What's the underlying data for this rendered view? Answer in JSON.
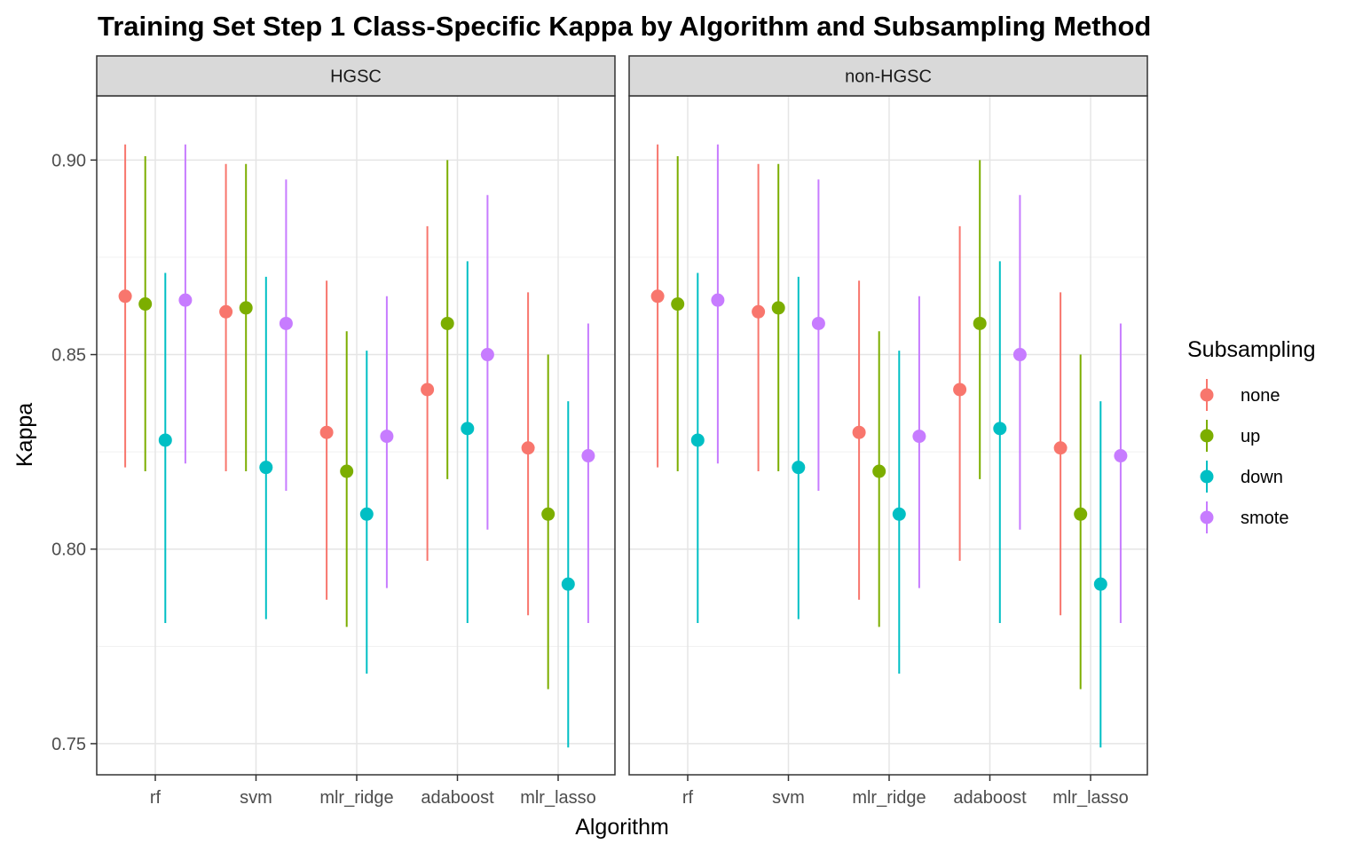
{
  "chart_data": {
    "type": "scatter",
    "subtype": "pointrange",
    "title": "Training Set Step 1 Class-Specific Kappa by Algorithm and Subsampling Method",
    "xlabel": "Algorithm",
    "ylabel": "Kappa",
    "ylim": [
      0.742,
      0.9165
    ],
    "y_ticks": [
      0.75,
      0.8,
      0.85,
      0.9
    ],
    "y_tick_labels": [
      "0.75",
      "0.80",
      "0.85",
      "0.90"
    ],
    "grid": true,
    "legend_position": "right",
    "legend_title": "Subsampling",
    "categories": [
      "rf",
      "svm",
      "mlr_ridge",
      "adaboost",
      "mlr_lasso"
    ],
    "facets": [
      {
        "label": "HGSC",
        "series": [
          {
            "name": "none",
            "color": "#F8766D",
            "points": [
              {
                "x": "rf",
                "y": 0.865,
                "ymin": 0.821,
                "ymax": 0.904
              },
              {
                "x": "svm",
                "y": 0.861,
                "ymin": 0.82,
                "ymax": 0.899
              },
              {
                "x": "mlr_ridge",
                "y": 0.83,
                "ymin": 0.787,
                "ymax": 0.869
              },
              {
                "x": "adaboost",
                "y": 0.841,
                "ymin": 0.797,
                "ymax": 0.883
              },
              {
                "x": "mlr_lasso",
                "y": 0.826,
                "ymin": 0.783,
                "ymax": 0.866
              }
            ]
          },
          {
            "name": "up",
            "color": "#7CAE00",
            "points": [
              {
                "x": "rf",
                "y": 0.863,
                "ymin": 0.82,
                "ymax": 0.901
              },
              {
                "x": "svm",
                "y": 0.862,
                "ymin": 0.82,
                "ymax": 0.899
              },
              {
                "x": "mlr_ridge",
                "y": 0.82,
                "ymin": 0.78,
                "ymax": 0.856
              },
              {
                "x": "adaboost",
                "y": 0.858,
                "ymin": 0.818,
                "ymax": 0.9
              },
              {
                "x": "mlr_lasso",
                "y": 0.809,
                "ymin": 0.764,
                "ymax": 0.85
              }
            ]
          },
          {
            "name": "down",
            "color": "#00BFC4",
            "points": [
              {
                "x": "rf",
                "y": 0.828,
                "ymin": 0.781,
                "ymax": 0.871
              },
              {
                "x": "svm",
                "y": 0.821,
                "ymin": 0.782,
                "ymax": 0.87
              },
              {
                "x": "mlr_ridge",
                "y": 0.809,
                "ymin": 0.768,
                "ymax": 0.851
              },
              {
                "x": "adaboost",
                "y": 0.831,
                "ymin": 0.781,
                "ymax": 0.874
              },
              {
                "x": "mlr_lasso",
                "y": 0.791,
                "ymin": 0.749,
                "ymax": 0.838
              }
            ]
          },
          {
            "name": "smote",
            "color": "#C77CFF",
            "points": [
              {
                "x": "rf",
                "y": 0.864,
                "ymin": 0.822,
                "ymax": 0.904
              },
              {
                "x": "svm",
                "y": 0.858,
                "ymin": 0.815,
                "ymax": 0.895
              },
              {
                "x": "mlr_ridge",
                "y": 0.829,
                "ymin": 0.79,
                "ymax": 0.865
              },
              {
                "x": "adaboost",
                "y": 0.85,
                "ymin": 0.805,
                "ymax": 0.891
              },
              {
                "x": "mlr_lasso",
                "y": 0.824,
                "ymin": 0.781,
                "ymax": 0.858
              }
            ]
          }
        ]
      },
      {
        "label": "non-HGSC",
        "series": [
          {
            "name": "none",
            "color": "#F8766D",
            "points": [
              {
                "x": "rf",
                "y": 0.865,
                "ymin": 0.821,
                "ymax": 0.904
              },
              {
                "x": "svm",
                "y": 0.861,
                "ymin": 0.82,
                "ymax": 0.899
              },
              {
                "x": "mlr_ridge",
                "y": 0.83,
                "ymin": 0.787,
                "ymax": 0.869
              },
              {
                "x": "adaboost",
                "y": 0.841,
                "ymin": 0.797,
                "ymax": 0.883
              },
              {
                "x": "mlr_lasso",
                "y": 0.826,
                "ymin": 0.783,
                "ymax": 0.866
              }
            ]
          },
          {
            "name": "up",
            "color": "#7CAE00",
            "points": [
              {
                "x": "rf",
                "y": 0.863,
                "ymin": 0.82,
                "ymax": 0.901
              },
              {
                "x": "svm",
                "y": 0.862,
                "ymin": 0.82,
                "ymax": 0.899
              },
              {
                "x": "mlr_ridge",
                "y": 0.82,
                "ymin": 0.78,
                "ymax": 0.856
              },
              {
                "x": "adaboost",
                "y": 0.858,
                "ymin": 0.818,
                "ymax": 0.9
              },
              {
                "x": "mlr_lasso",
                "y": 0.809,
                "ymin": 0.764,
                "ymax": 0.85
              }
            ]
          },
          {
            "name": "down",
            "color": "#00BFC4",
            "points": [
              {
                "x": "rf",
                "y": 0.828,
                "ymin": 0.781,
                "ymax": 0.871
              },
              {
                "x": "svm",
                "y": 0.821,
                "ymin": 0.782,
                "ymax": 0.87
              },
              {
                "x": "mlr_ridge",
                "y": 0.809,
                "ymin": 0.768,
                "ymax": 0.851
              },
              {
                "x": "adaboost",
                "y": 0.831,
                "ymin": 0.781,
                "ymax": 0.874
              },
              {
                "x": "mlr_lasso",
                "y": 0.791,
                "ymin": 0.749,
                "ymax": 0.838
              }
            ]
          },
          {
            "name": "smote",
            "color": "#C77CFF",
            "points": [
              {
                "x": "rf",
                "y": 0.864,
                "ymin": 0.822,
                "ymax": 0.904
              },
              {
                "x": "svm",
                "y": 0.858,
                "ymin": 0.815,
                "ymax": 0.895
              },
              {
                "x": "mlr_ridge",
                "y": 0.829,
                "ymin": 0.79,
                "ymax": 0.865
              },
              {
                "x": "adaboost",
                "y": 0.85,
                "ymin": 0.805,
                "ymax": 0.891
              },
              {
                "x": "mlr_lasso",
                "y": 0.824,
                "ymin": 0.781,
                "ymax": 0.858
              }
            ]
          }
        ]
      }
    ]
  }
}
